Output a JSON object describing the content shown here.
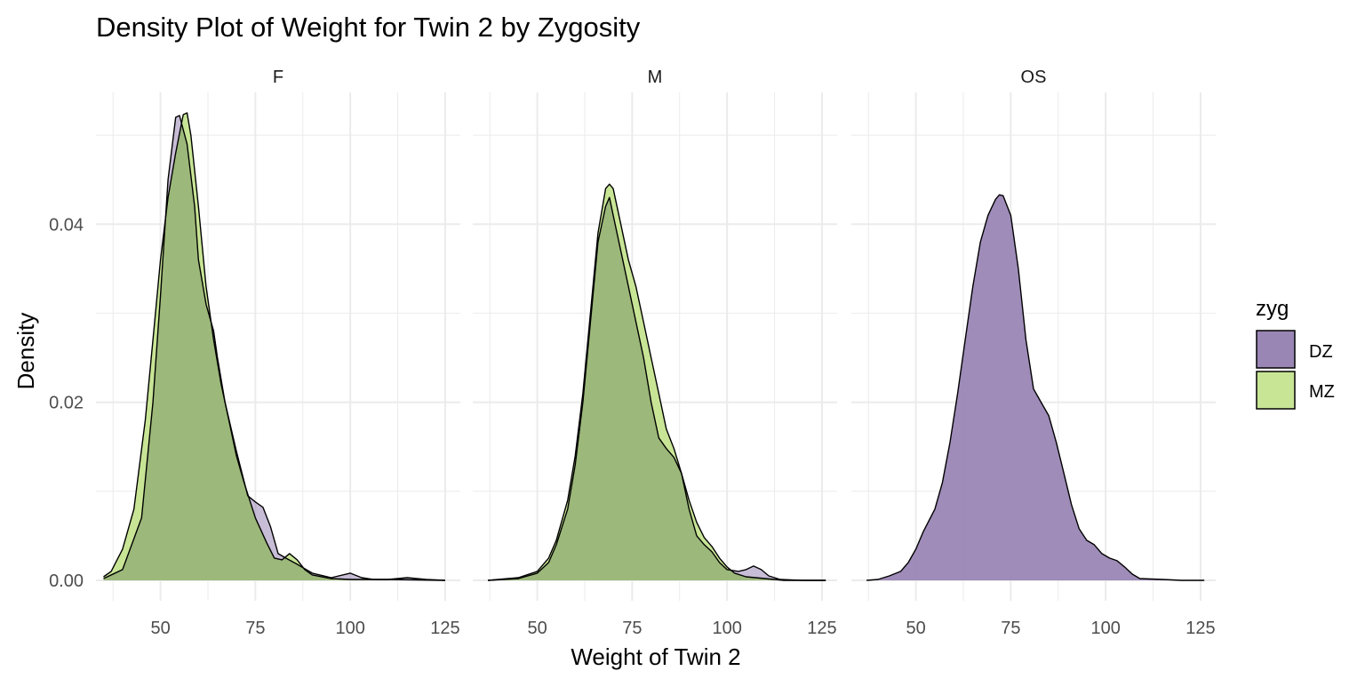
{
  "chart_data": {
    "type": "area",
    "title": "Density Plot of Weight for Twin 2 by Zygosity",
    "xlabel": "Weight of Twin 2",
    "ylabel": "Density",
    "xlim": [
      33,
      129
    ],
    "ylim": [
      -0.0023,
      0.0548
    ],
    "x_ticks": [
      50,
      75,
      100,
      125
    ],
    "x_tick_labels": [
      "50",
      "75",
      "100",
      "125"
    ],
    "y_ticks": [
      0,
      0.02,
      0.04
    ],
    "y_tick_labels": [
      "0.00",
      "0.02",
      "0.04"
    ],
    "grid": true,
    "legend": {
      "title": "zyg",
      "position": "right",
      "entries": [
        {
          "label": "DZ",
          "color": "#9a86b5"
        },
        {
          "label": "MZ",
          "color": "#c8e596"
        }
      ]
    },
    "colors": {
      "DZ": "#9a86b5",
      "MZ": "#c8e596",
      "overlap": "#9cb87a",
      "outline": "#000000",
      "grid": "#ebebeb"
    },
    "facets": [
      {
        "label": "F",
        "series": [
          {
            "name": "DZ",
            "points": [
              [
                35,
                0.0002
              ],
              [
                40,
                0.0012
              ],
              [
                45,
                0.007
              ],
              [
                48,
                0.02
              ],
              [
                50,
                0.032
              ],
              [
                52,
                0.045
              ],
              [
                54,
                0.052
              ],
              [
                55,
                0.0522
              ],
              [
                57,
                0.049
              ],
              [
                59,
                0.042
              ],
              [
                60,
                0.036
              ],
              [
                62,
                0.031
              ],
              [
                64,
                0.028
              ],
              [
                65,
                0.025
              ],
              [
                67,
                0.02
              ],
              [
                70,
                0.0145
              ],
              [
                73,
                0.0095
              ],
              [
                75,
                0.0088
              ],
              [
                77,
                0.0082
              ],
              [
                79,
                0.006
              ],
              [
                81,
                0.003
              ],
              [
                83,
                0.0025
              ],
              [
                86,
                0.0018
              ],
              [
                90,
                0.0008
              ],
              [
                95,
                0.0003
              ],
              [
                100,
                0.0008
              ],
              [
                103,
                0.0003
              ],
              [
                106,
                0.0001
              ],
              [
                110,
                0.0001
              ],
              [
                115,
                0.0003
              ],
              [
                120,
                0.0001
              ],
              [
                125,
                0
              ]
            ]
          },
          {
            "name": "MZ",
            "points": [
              [
                35,
                0.0004
              ],
              [
                37,
                0.001
              ],
              [
                40,
                0.0035
              ],
              [
                43,
                0.008
              ],
              [
                46,
                0.018
              ],
              [
                48,
                0.027
              ],
              [
                50,
                0.036
              ],
              [
                52,
                0.043
              ],
              [
                54,
                0.048
              ],
              [
                56,
                0.0523
              ],
              [
                57,
                0.0525
              ],
              [
                58,
                0.05
              ],
              [
                60,
                0.042
              ],
              [
                62,
                0.033
              ],
              [
                64,
                0.027
              ],
              [
                66,
                0.022
              ],
              [
                68,
                0.018
              ],
              [
                70,
                0.014
              ],
              [
                72,
                0.011
              ],
              [
                75,
                0.007
              ],
              [
                78,
                0.0042
              ],
              [
                80,
                0.0025
              ],
              [
                82,
                0.0023
              ],
              [
                84,
                0.003
              ],
              [
                86,
                0.0023
              ],
              [
                88,
                0.0012
              ],
              [
                90,
                0.0006
              ],
              [
                95,
                0.0002
              ],
              [
                100,
                0.0001
              ],
              [
                110,
                0.0001
              ],
              [
                125,
                0
              ]
            ]
          }
        ]
      },
      {
        "label": "M",
        "series": [
          {
            "name": "DZ",
            "points": [
              [
                37,
                0
              ],
              [
                45,
                0.0002
              ],
              [
                50,
                0.0008
              ],
              [
                53,
                0.002
              ],
              [
                55,
                0.004
              ],
              [
                58,
                0.008
              ],
              [
                60,
                0.013
              ],
              [
                62,
                0.02
              ],
              [
                64,
                0.029
              ],
              [
                66,
                0.038
              ],
              [
                68,
                0.042
              ],
              [
                69,
                0.043
              ],
              [
                70,
                0.041
              ],
              [
                72,
                0.037
              ],
              [
                75,
                0.031
              ],
              [
                78,
                0.025
              ],
              [
                80,
                0.02
              ],
              [
                82,
                0.016
              ],
              [
                84,
                0.0148
              ],
              [
                86,
                0.0138
              ],
              [
                88,
                0.012
              ],
              [
                90,
                0.008
              ],
              [
                92,
                0.005
              ],
              [
                94,
                0.004
              ],
              [
                96,
                0.0032
              ],
              [
                98,
                0.002
              ],
              [
                100,
                0.0012
              ],
              [
                103,
                0.001
              ],
              [
                105,
                0.0012
              ],
              [
                107,
                0.0016
              ],
              [
                109,
                0.0012
              ],
              [
                111,
                0.0005
              ],
              [
                114,
                0.0001
              ],
              [
                120,
                0
              ],
              [
                126,
                0
              ]
            ]
          },
          {
            "name": "MZ",
            "points": [
              [
                37,
                0
              ],
              [
                45,
                0.0003
              ],
              [
                50,
                0.001
              ],
              [
                53,
                0.0025
              ],
              [
                55,
                0.0045
              ],
              [
                58,
                0.009
              ],
              [
                60,
                0.014
              ],
              [
                62,
                0.021
              ],
              [
                64,
                0.03
              ],
              [
                66,
                0.039
              ],
              [
                68,
                0.044
              ],
              [
                69,
                0.0445
              ],
              [
                70,
                0.044
              ],
              [
                72,
                0.04
              ],
              [
                74,
                0.036
              ],
              [
                76,
                0.033
              ],
              [
                78,
                0.029
              ],
              [
                80,
                0.025
              ],
              [
                82,
                0.021
              ],
              [
                84,
                0.017
              ],
              [
                86,
                0.0148
              ],
              [
                88,
                0.012
              ],
              [
                90,
                0.009
              ],
              [
                92,
                0.0065
              ],
              [
                94,
                0.0048
              ],
              [
                96,
                0.0038
              ],
              [
                98,
                0.0025
              ],
              [
                100,
                0.0015
              ],
              [
                102,
                0.0008
              ],
              [
                105,
                0.0004
              ],
              [
                110,
                0.0002
              ],
              [
                115,
                0
              ],
              [
                126,
                0
              ]
            ]
          }
        ]
      },
      {
        "label": "OS",
        "series": [
          {
            "name": "DZ",
            "points": [
              [
                37,
                0
              ],
              [
                40,
                0.0001
              ],
              [
                43,
                0.0005
              ],
              [
                46,
                0.001
              ],
              [
                48,
                0.002
              ],
              [
                50,
                0.0035
              ],
              [
                52,
                0.0055
              ],
              [
                55,
                0.008
              ],
              [
                57,
                0.011
              ],
              [
                59,
                0.0155
              ],
              [
                61,
                0.021
              ],
              [
                63,
                0.027
              ],
              [
                65,
                0.033
              ],
              [
                67,
                0.038
              ],
              [
                69,
                0.041
              ],
              [
                71,
                0.0428
              ],
              [
                72,
                0.0433
              ],
              [
                73,
                0.0432
              ],
              [
                75,
                0.041
              ],
              [
                77,
                0.035
              ],
              [
                79,
                0.027
              ],
              [
                81,
                0.0215
              ],
              [
                83,
                0.02
              ],
              [
                85,
                0.0185
              ],
              [
                87,
                0.0155
              ],
              [
                89,
                0.012
              ],
              [
                91,
                0.0085
              ],
              [
                93,
                0.0058
              ],
              [
                95,
                0.0045
              ],
              [
                97,
                0.004
              ],
              [
                99,
                0.003
              ],
              [
                101,
                0.0025
              ],
              [
                103,
                0.0022
              ],
              [
                105,
                0.0015
              ],
              [
                107,
                0.0007
              ],
              [
                109,
                0.0002
              ],
              [
                115,
                0.0001
              ],
              [
                120,
                0
              ],
              [
                126,
                0
              ]
            ]
          }
        ]
      }
    ]
  }
}
